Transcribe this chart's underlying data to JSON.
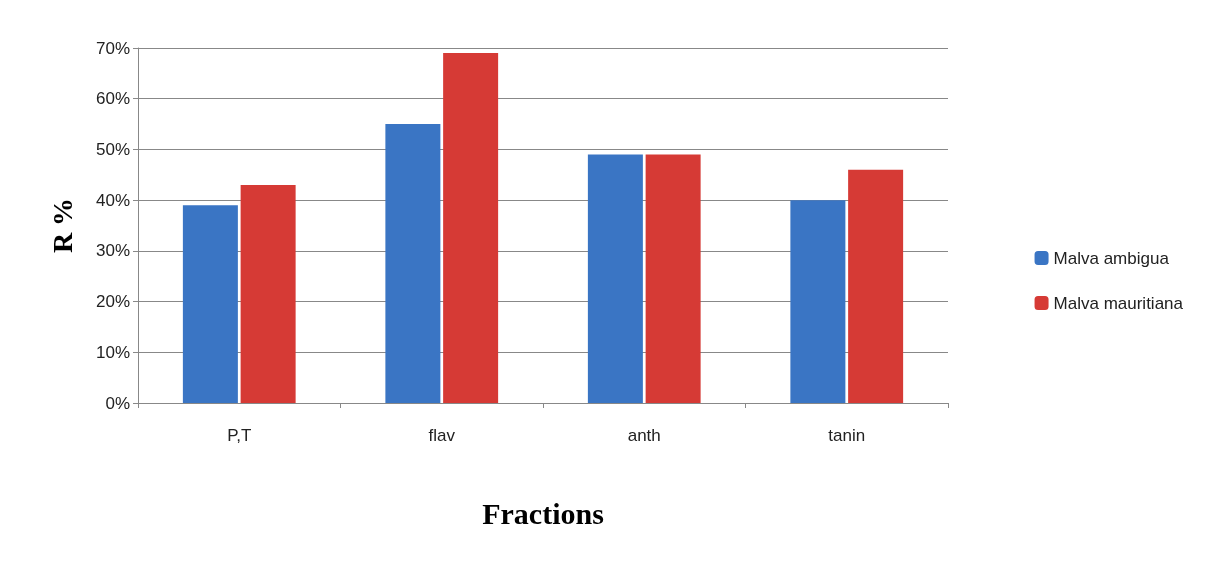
{
  "chart_data": {
    "type": "bar",
    "xlabel": "Fractions",
    "ylabel": "R %",
    "categories": [
      "P,T",
      "flav",
      "anth",
      "tanin"
    ],
    "series": [
      {
        "name": "Malva ambigua",
        "color": "#3a75c4",
        "values": [
          0.39,
          0.55,
          0.49,
          0.4
        ]
      },
      {
        "name": "Malva mauritiana",
        "color": "#d63a35",
        "values": [
          0.43,
          0.69,
          0.49,
          0.46
        ]
      }
    ],
    "ylim": [
      0,
      0.7
    ],
    "yticks": [
      {
        "value": 0,
        "label": "0%"
      },
      {
        "value": 0.1,
        "label": "10%"
      },
      {
        "value": 0.2,
        "label": "20%"
      },
      {
        "value": 0.3,
        "label": "30%"
      },
      {
        "value": 0.4,
        "label": "40%"
      },
      {
        "value": 0.5,
        "label": "50%"
      },
      {
        "value": 0.6,
        "label": "60%"
      },
      {
        "value": 0.7,
        "label": "70%"
      }
    ],
    "grid": "y",
    "legend": "right"
  }
}
